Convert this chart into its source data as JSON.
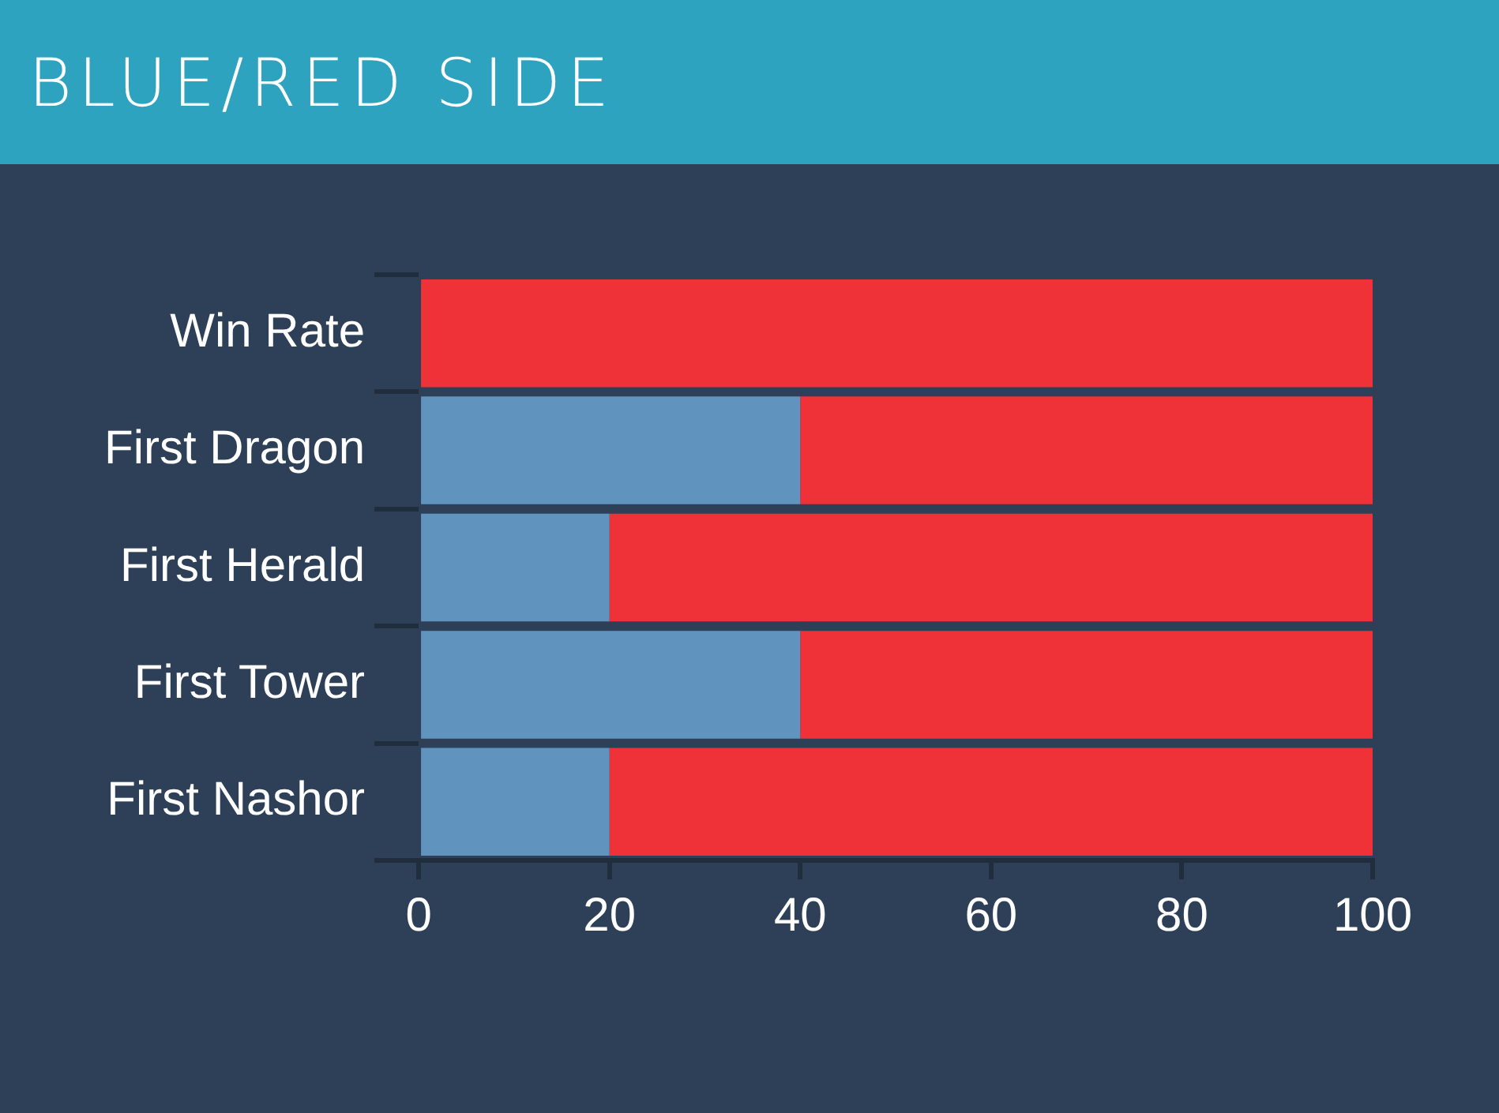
{
  "chart_data": {
    "type": "bar",
    "title": "BLUE/RED SIDE",
    "orientation": "horizontal",
    "stacked": true,
    "categories": [
      "Win Rate",
      "First Dragon",
      "First Herald",
      "First Tower",
      "First Nashor"
    ],
    "series": [
      {
        "color": "#6094bf",
        "values": [
          0,
          40,
          20,
          40,
          20
        ]
      },
      {
        "color": "#ef3237",
        "values": [
          100,
          60,
          80,
          60,
          80
        ]
      }
    ],
    "xlim": [
      0,
      100
    ],
    "xticks": [
      0,
      20,
      40,
      60,
      80,
      100
    ],
    "legend": false
  }
}
